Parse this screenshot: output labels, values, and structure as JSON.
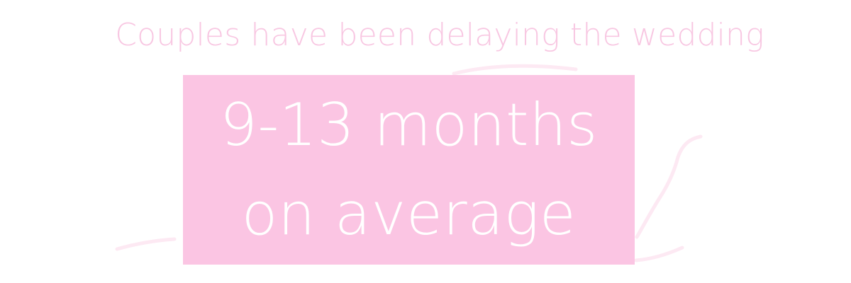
{
  "colors": {
    "background": "#ffffff",
    "headline_text": "#f8c7e2",
    "box_fill": "#fbc5e3",
    "box_text": "#ffffff",
    "illustration_stroke": "#fde9f3"
  },
  "illustration": {
    "icon": "couple-silhouette-icon"
  },
  "headline": {
    "text": "Couples have been delaying the wedding"
  },
  "stat": {
    "line1": "9-13 months",
    "line2": "on average"
  }
}
